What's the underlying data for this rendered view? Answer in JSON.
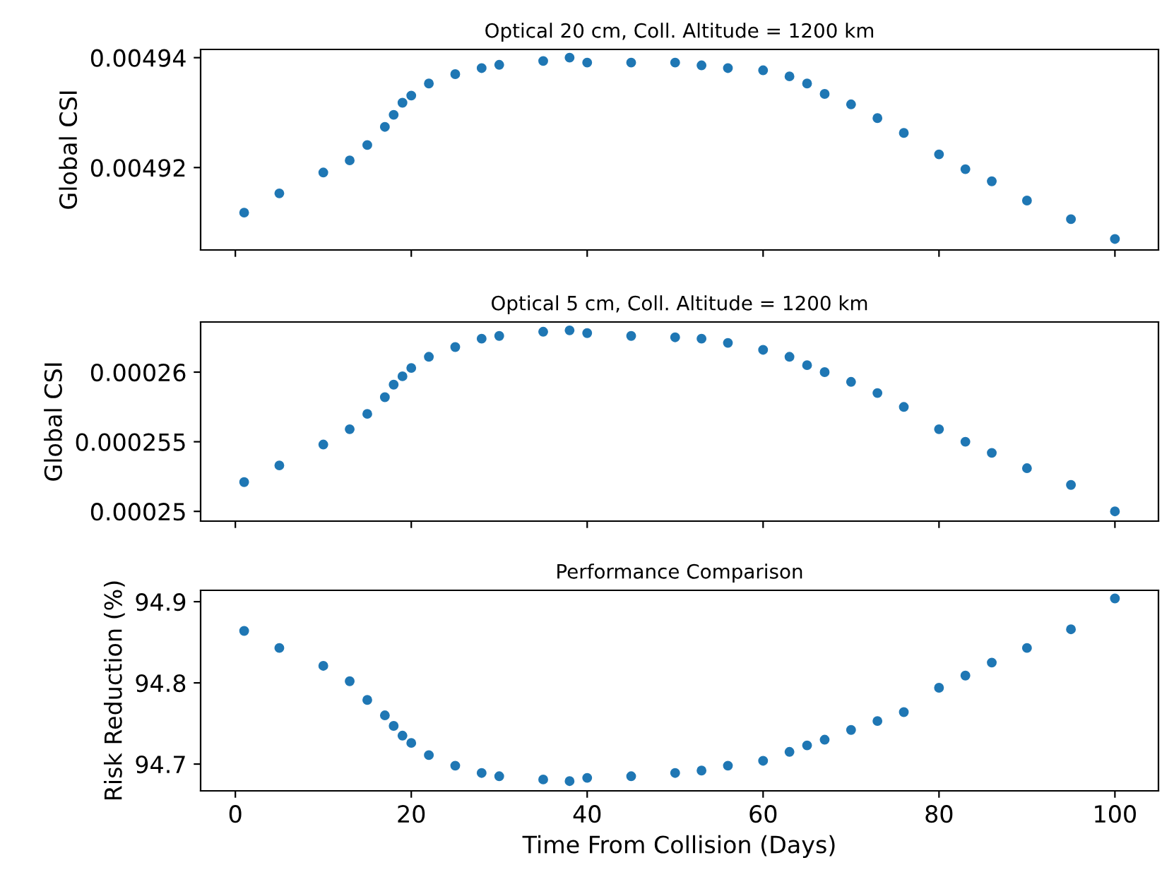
{
  "chart_data": [
    {
      "type": "scatter",
      "title": "Optical 20 cm, Coll. Altitude = 1200 km",
      "ylabel": "Global CSI",
      "x": [
        1,
        5,
        10,
        13,
        15,
        17,
        18,
        19,
        20,
        22,
        25,
        28,
        30,
        35,
        38,
        40,
        45,
        50,
        53,
        56,
        60,
        63,
        65,
        67,
        70,
        73,
        76,
        80,
        83,
        86,
        90,
        95,
        100
      ],
      "series": [
        {
          "color": "#1f77b4",
          "values": [
            0.0049118,
            0.0049153,
            0.0049191,
            0.0049213,
            0.0049241,
            0.0049274,
            0.0049296,
            0.0049318,
            0.0049331,
            0.0049353,
            0.004937,
            0.0049381,
            0.0049387,
            0.0049394,
            0.00494,
            0.0049391,
            0.0049391,
            0.0049391,
            0.0049386,
            0.0049381,
            0.0049377,
            0.0049366,
            0.0049353,
            0.0049334,
            0.0049315,
            0.004929,
            0.0049263,
            0.0049224,
            0.0049197,
            0.0049175,
            0.004914,
            0.0049106,
            0.004907
          ]
        }
      ],
      "xlim": [
        -3.95,
        104.95
      ],
      "xticks": [
        0,
        20,
        40,
        60,
        80,
        100
      ],
      "ylim": [
        0.004905,
        0.0049415
      ],
      "yticks": [
        0.00492,
        0.00494
      ],
      "tick_labels": "y",
      "marker": "circle",
      "grid": false,
      "legend": false
    },
    {
      "type": "scatter",
      "title": "Optical 5 cm, Coll. Altitude = 1200 km",
      "ylabel": "Global CSI",
      "x": [
        1,
        5,
        10,
        13,
        15,
        17,
        18,
        19,
        20,
        22,
        25,
        28,
        30,
        35,
        38,
        40,
        45,
        50,
        53,
        56,
        60,
        63,
        65,
        67,
        70,
        73,
        76,
        80,
        83,
        86,
        90,
        95,
        100
      ],
      "series": [
        {
          "color": "#1f77b4",
          "values": [
            0.0002521,
            0.0002533,
            0.0002548,
            0.0002559,
            0.000257,
            0.0002582,
            0.0002591,
            0.0002597,
            0.0002603,
            0.0002611,
            0.0002618,
            0.0002624,
            0.0002626,
            0.0002629,
            0.000263,
            0.0002628,
            0.0002626,
            0.0002625,
            0.0002624,
            0.0002621,
            0.0002616,
            0.0002611,
            0.0002605,
            0.00026,
            0.0002593,
            0.0002585,
            0.0002575,
            0.0002559,
            0.000255,
            0.0002542,
            0.0002531,
            0.0002519,
            0.00025
          ]
        }
      ],
      "xlim": [
        -3.95,
        104.95
      ],
      "xticks": [
        0,
        20,
        40,
        60,
        80,
        100
      ],
      "ylim": [
        0.0002493,
        0.0002636
      ],
      "yticks": [
        0.00025,
        0.000255,
        0.00026
      ],
      "tick_labels": "y",
      "marker": "circle",
      "grid": false,
      "legend": false
    },
    {
      "type": "scatter",
      "title": "Performance Comparison",
      "xlabel": "Time From Collision (Days)",
      "ylabel": "Risk Reduction (%)",
      "x": [
        1,
        5,
        10,
        13,
        15,
        17,
        18,
        19,
        20,
        22,
        25,
        28,
        30,
        35,
        38,
        40,
        45,
        50,
        53,
        56,
        60,
        63,
        65,
        67,
        70,
        73,
        76,
        80,
        83,
        86,
        90,
        95,
        100
      ],
      "series": [
        {
          "color": "#1f77b4",
          "values": [
            94.864,
            94.843,
            94.821,
            94.802,
            94.779,
            94.76,
            94.747,
            94.735,
            94.726,
            94.711,
            94.698,
            94.689,
            94.685,
            94.681,
            94.679,
            94.683,
            94.685,
            94.689,
            94.692,
            94.698,
            94.704,
            94.715,
            94.723,
            94.73,
            94.742,
            94.753,
            94.764,
            94.794,
            94.809,
            94.825,
            94.843,
            94.866,
            94.904
          ]
        }
      ],
      "xlim": [
        -3.95,
        104.95
      ],
      "xticks": [
        0,
        20,
        40,
        60,
        80,
        100
      ],
      "ylim": [
        94.667,
        94.914
      ],
      "yticks": [
        94.7,
        94.8,
        94.9
      ],
      "marker": "circle",
      "grid": false,
      "legend": false
    }
  ]
}
